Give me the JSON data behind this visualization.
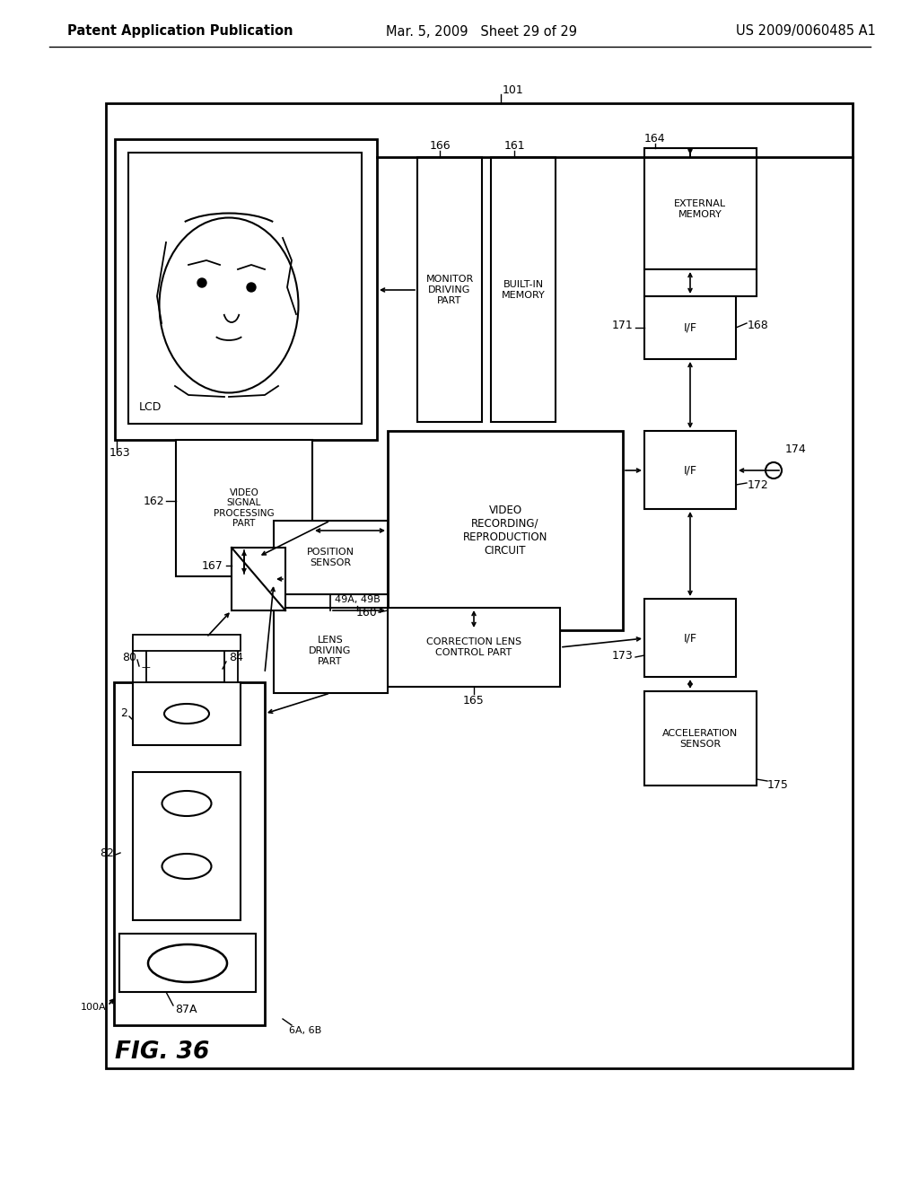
{
  "title_left": "Patent Application Publication",
  "title_mid": "Mar. 5, 2009   Sheet 29 of 29",
  "title_right": "US 2009/0060485 A1",
  "fig_label": "FIG. 36",
  "bg_color": "#ffffff"
}
